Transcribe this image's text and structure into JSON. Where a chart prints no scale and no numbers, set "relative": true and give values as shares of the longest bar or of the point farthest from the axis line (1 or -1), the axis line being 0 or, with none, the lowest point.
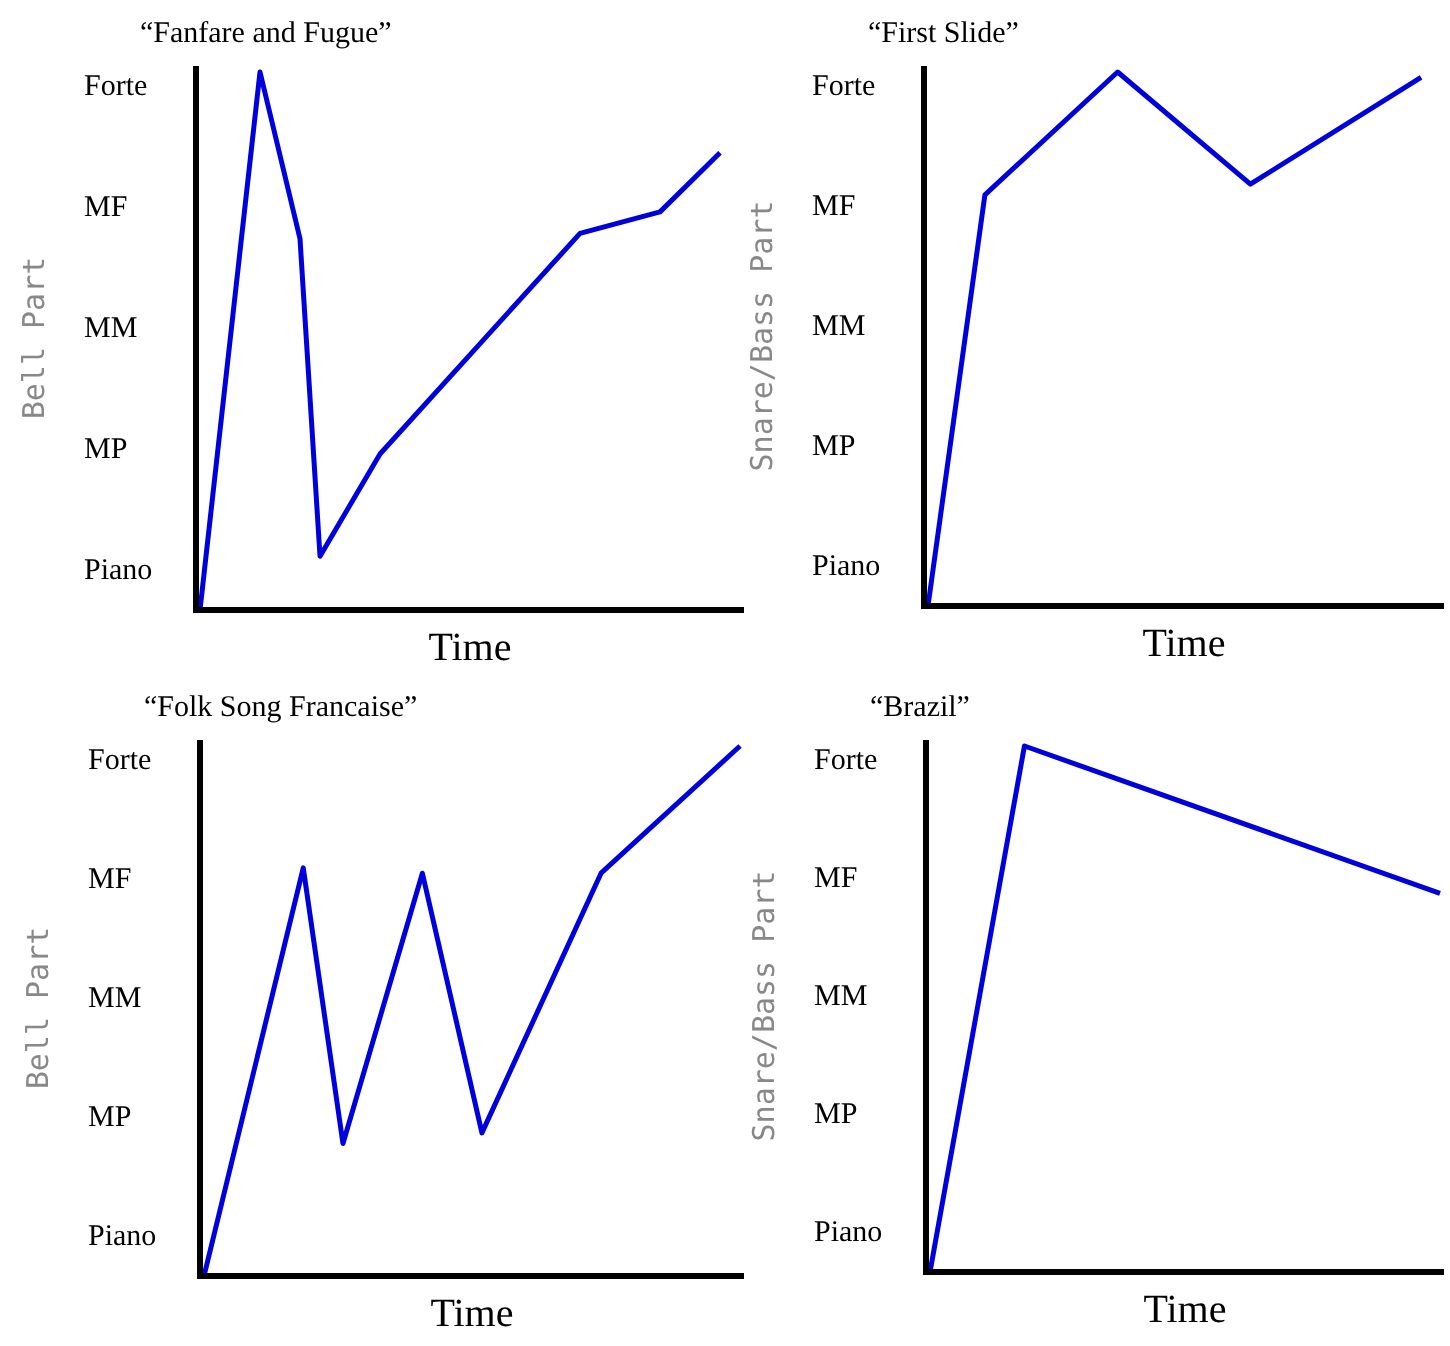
{
  "chart_data": [
    {
      "type": "line",
      "title": "“Fanfare and Fugue”",
      "xlabel": "Time",
      "ylabel": "Bell Part",
      "relative": true,
      "annotations": [
        "Piano",
        "MP",
        "MM",
        "MF",
        "Forte"
      ],
      "categories": [
        null,
        null,
        null,
        null,
        null,
        null,
        null,
        null,
        null,
        null,
        null,
        null,
        null,
        null,
        null,
        null,
        null,
        null,
        null,
        null,
        null,
        null,
        null,
        null,
        null,
        null,
        null,
        null
      ],
      "series": [
        {
          "color": "#0000dd",
          "values": [
            0,
            null,
            null,
            1,
            null,
            0.69,
            0.1,
            null,
            null,
            0.29,
            null,
            null,
            null,
            null,
            null,
            null,
            null,
            null,
            null,
            0.7,
            null,
            null,
            null,
            0.74,
            null,
            null,
            0.85,
            null
          ]
        }
      ]
    },
    {
      "type": "line",
      "title": "“First Slide”",
      "xlabel": "Time",
      "ylabel": "Snare/Bass Part",
      "relative": true,
      "annotations": [
        "Piano",
        "MP",
        "MM",
        "MF",
        "Forte"
      ],
      "categories": [
        null,
        null,
        null,
        null,
        null,
        null,
        null,
        null,
        null,
        null,
        null,
        null,
        null,
        null,
        null,
        null,
        null,
        null,
        null,
        null,
        null,
        null,
        null,
        null,
        null,
        null,
        null,
        null
      ],
      "series": [
        {
          "color": "#0000dd",
          "values": [
            0,
            null,
            null,
            0.77,
            null,
            null,
            null,
            null,
            null,
            null,
            1,
            null,
            null,
            null,
            null,
            null,
            null,
            0.79,
            null,
            null,
            null,
            null,
            null,
            null,
            null,
            null,
            0.99,
            null
          ]
        }
      ]
    },
    {
      "type": "line",
      "title": "“Folk Song Francaise”",
      "xlabel": "Time",
      "ylabel": "Bell Part",
      "relative": true,
      "annotations": [
        "Piano",
        "MP",
        "MM",
        "MF",
        "Forte"
      ],
      "categories": [
        null,
        null,
        null,
        null,
        null,
        null,
        null,
        null,
        null,
        null,
        null,
        null,
        null,
        null,
        null,
        null,
        null,
        null,
        null,
        null,
        null,
        null,
        null,
        null,
        null,
        null,
        null,
        null
      ],
      "series": [
        {
          "color": "#0000dd",
          "values": [
            0,
            null,
            null,
            null,
            null,
            0.77,
            null,
            0.25,
            null,
            null,
            null,
            0.76,
            null,
            null,
            0.27,
            null,
            null,
            null,
            null,
            null,
            0.76,
            null,
            null,
            null,
            null,
            null,
            null,
            1
          ]
        }
      ]
    },
    {
      "type": "line",
      "title": "“Brazil”",
      "xlabel": "Time",
      "ylabel": "Snare/Bass Part",
      "relative": true,
      "annotations": [
        "Piano",
        "MP",
        "MM",
        "MF",
        "Forte"
      ],
      "categories": [
        null,
        null,
        null,
        null,
        null,
        null,
        null,
        null,
        null,
        null,
        null,
        null,
        null,
        null,
        null,
        null,
        null,
        null,
        null,
        null,
        null,
        null,
        null,
        null,
        null,
        null,
        null,
        null
      ],
      "series": [
        {
          "color": "#0000dd",
          "values": [
            0,
            null,
            null,
            null,
            null,
            1,
            null,
            null,
            null,
            null,
            null,
            null,
            null,
            null,
            null,
            null,
            null,
            null,
            null,
            null,
            null,
            null,
            null,
            null,
            null,
            null,
            null,
            0.72
          ]
        }
      ]
    }
  ]
}
